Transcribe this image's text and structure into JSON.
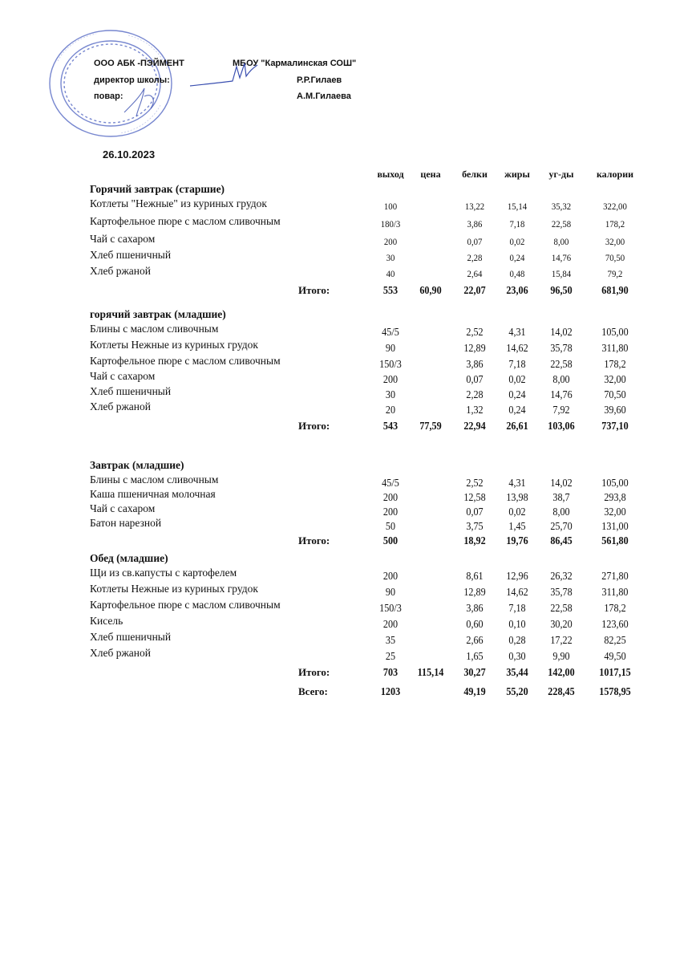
{
  "header": {
    "supplier": "ООО АБК -ПЭЙМЕНТ",
    "school": "МБОУ \"Кармалинская СОШ\"",
    "director_label": "директор школы:",
    "director_name": "Р.Р.Гилаев",
    "cook_label": "повар:",
    "cook_name": "А.М.Гилаева",
    "date": "26.10.2023",
    "stamp_text": "Муниципальное бюджетное общеобразовательное учреждение «Кармалинская средняя общеобразовательная школа» Нижнекамского муниципального района Республики Татарстан",
    "ink_color": "#3a4fb0"
  },
  "columns": [
    "выход",
    "цена",
    "белки",
    "жиры",
    "уг-ды",
    "калории"
  ],
  "sections": [
    {
      "title": "Горячий завтрак (старшие)",
      "rows": [
        {
          "name": "Котлеты \"Нежные\" из куриных грудок",
          "values": [
            "100",
            "",
            "13,22",
            "15,14",
            "35,32",
            "322,00"
          ]
        },
        {
          "name": "Картофельное пюре  с маслом сливочным",
          "values": [
            "180/3",
            "",
            "3,86",
            "7,18",
            "22,58",
            "178,2"
          ]
        },
        {
          "name": "Чай с сахаром",
          "values": [
            "200",
            "",
            "0,07",
            "0,02",
            "8,00",
            "32,00"
          ]
        },
        {
          "name": "Хлеб пшеничный",
          "values": [
            "30",
            "",
            "2,28",
            "0,24",
            "14,76",
            "70,50"
          ]
        },
        {
          "name": "Хлеб ржаной",
          "values": [
            "40",
            "",
            "2,64",
            "0,48",
            "15,84",
            "79,2"
          ]
        }
      ],
      "totals": [
        {
          "label": "Итого:",
          "values": [
            "553",
            "60,90",
            "22,07",
            "23,06",
            "96,50",
            "681,90"
          ]
        }
      ]
    },
    {
      "title": "горячий завтрак (младшие)",
      "rows": [
        {
          "name": "Блины с маслом сливочным",
          "values": [
            "45/5",
            "",
            "2,52",
            "4,31",
            "14,02",
            "105,00"
          ]
        },
        {
          "name": "Котлеты Нежные из куриных грудок",
          "values": [
            "90",
            "",
            "12,89",
            "14,62",
            "35,78",
            "311,80"
          ]
        },
        {
          "name": "Картофельное пюре  с маслом сливочным",
          "values": [
            "150/3",
            "",
            "3,86",
            "7,18",
            "22,58",
            "178,2"
          ]
        },
        {
          "name": "Чай с сахаром",
          "values": [
            "200",
            "",
            "0,07",
            "0,02",
            "8,00",
            "32,00"
          ]
        },
        {
          "name": "Хлеб пшеничный",
          "values": [
            "30",
            "",
            "2,28",
            "0,24",
            "14,76",
            "70,50"
          ]
        },
        {
          "name": "Хлеб ржаной",
          "values": [
            "20",
            "",
            "1,32",
            "0,24",
            "7,92",
            "39,60"
          ]
        }
      ],
      "totals": [
        {
          "label": "Итого:",
          "values": [
            "543",
            "77,59",
            "22,94",
            "26,61",
            "103,06",
            "737,10"
          ]
        }
      ]
    },
    {
      "title": "Завтрак (младшие)",
      "rows": [
        {
          "name": "Блины с маслом сливочным",
          "values": [
            "45/5",
            "",
            "2,52",
            "4,31",
            "14,02",
            "105,00"
          ]
        },
        {
          "name": "Каша пшеничная  молочная",
          "values": [
            "200",
            "",
            "12,58",
            "13,98",
            "38,7",
            "293,8"
          ]
        },
        {
          "name": "Чай с сахаром",
          "values": [
            "200",
            "",
            "0,07",
            "0,02",
            "8,00",
            "32,00"
          ]
        },
        {
          "name": "Батон нарезной",
          "values": [
            "50",
            "",
            "3,75",
            "1,45",
            "25,70",
            "131,00"
          ]
        }
      ],
      "totals": [
        {
          "label": "Итого:",
          "values": [
            "500",
            "",
            "18,92",
            "19,76",
            "86,45",
            "561,80"
          ]
        }
      ]
    },
    {
      "title": "Обед (младшие)",
      "rows": [
        {
          "name": "Щи из св.капусты с картофелем",
          "values": [
            "200",
            "",
            "8,61",
            "12,96",
            "26,32",
            "271,80"
          ]
        },
        {
          "name": "Котлеты Нежные из куриных грудок",
          "values": [
            "90",
            "",
            "12,89",
            "14,62",
            "35,78",
            "311,80"
          ]
        },
        {
          "name": "Картофельное пюре  с маслом сливочным",
          "values": [
            "150/3",
            "",
            "3,86",
            "7,18",
            "22,58",
            "178,2"
          ]
        },
        {
          "name": "Кисель",
          "values": [
            "200",
            "",
            "0,60",
            "0,10",
            "30,20",
            "123,60"
          ]
        },
        {
          "name": "Хлеб пшеничный",
          "values": [
            "35",
            "",
            "2,66",
            "0,28",
            "17,22",
            "82,25"
          ]
        },
        {
          "name": "Хлеб ржаной",
          "values": [
            "25",
            "",
            "1,65",
            "0,30",
            "9,90",
            "49,50"
          ]
        }
      ],
      "totals": [
        {
          "label": "Итого:",
          "values": [
            "703",
            "115,14",
            "30,27",
            "35,44",
            "142,00",
            "1017,15"
          ]
        },
        {
          "label": "Всего:",
          "values": [
            "1203",
            "",
            "49,19",
            "55,20",
            "228,45",
            "1578,95"
          ]
        }
      ]
    }
  ]
}
